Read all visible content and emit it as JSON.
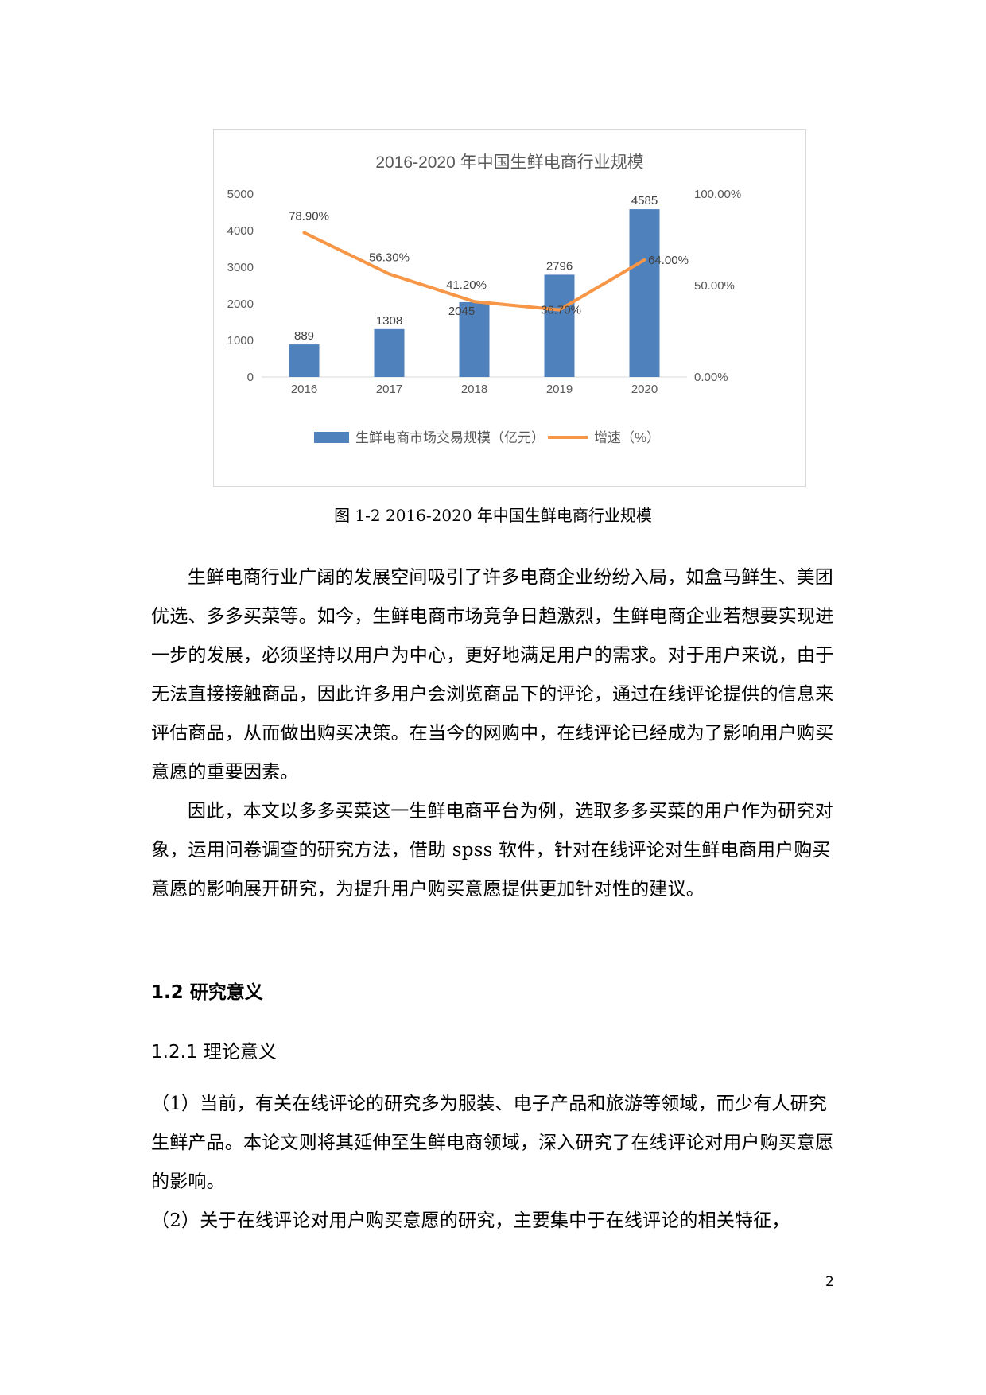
{
  "chart_data": {
    "type": "bar",
    "title": "2016-2020 年中国生鲜电商行业规模",
    "categories": [
      "2016",
      "2017",
      "2018",
      "2019",
      "2020"
    ],
    "series": [
      {
        "name": "生鲜电商市场交易规模（亿元）",
        "kind": "bar",
        "axis": "left",
        "values": [
          889,
          1308,
          2045,
          2796,
          4585
        ],
        "color": "#4f81bd"
      },
      {
        "name": "增速（%）",
        "kind": "line",
        "axis": "right",
        "values": [
          78.9,
          56.3,
          41.2,
          36.7,
          64.0
        ],
        "color": "#f79646"
      }
    ],
    "bar_labels": [
      "889",
      "1308",
      "2045",
      "2796",
      "4585"
    ],
    "line_labels": [
      "78.90%",
      "56.30%",
      "41.20%",
      "36.70%",
      "64.00%"
    ],
    "ylim_left": [
      0,
      5000
    ],
    "yticks_left": [
      "0",
      "1000",
      "2000",
      "3000",
      "4000",
      "5000"
    ],
    "ylim_right": [
      0,
      100
    ],
    "yticks_right": [
      "0.00%",
      "50.00%",
      "100.00%"
    ],
    "legend_position": "bottom",
    "grid": false
  },
  "caption": "图 1-2 2016-2020 年中国生鲜电商行业规模",
  "paragraphs": [
    "生鲜电商行业广阔的发展空间吸引了许多电商企业纷纷入局，如盒马鲜生、美团优选、多多买菜等。如今，生鲜电商市场竞争日趋激烈，生鲜电商企业若想要实现进一步的发展，必须坚持以用户为中心，更好地满足用户的需求。对于用户来说，由于无法直接接触商品，因此许多用户会浏览商品下的评论，通过在线评论提供的信息来评估商品，从而做出购买决策。在当今的网购中，在线评论已经成为了影响用户购买意愿的重要因素。",
    "因此，本文以多多买菜这一生鲜电商平台为例，选取多多买菜的用户作为研究对象，运用问卷调查的研究方法，借助 spss 软件，针对在线评论对生鲜电商用户购买意愿的影响展开研究，为提升用户购买意愿提供更加针对性的建议。"
  ],
  "section_heading": "1.2  研究意义",
  "subsection_heading": "1.2.1  理论意义",
  "items": [
    "（1）当前，有关在线评论的研究多为服装、电子产品和旅游等领域，而少有人研究生鲜产品。本论文则将其延伸至生鲜电商领域，深入研究了在线评论对用户购买意愿的影响。",
    "（2）关于在线评论对用户购买意愿的研究，主要集中于在线评论的相关特征，"
  ],
  "page_number": "2"
}
